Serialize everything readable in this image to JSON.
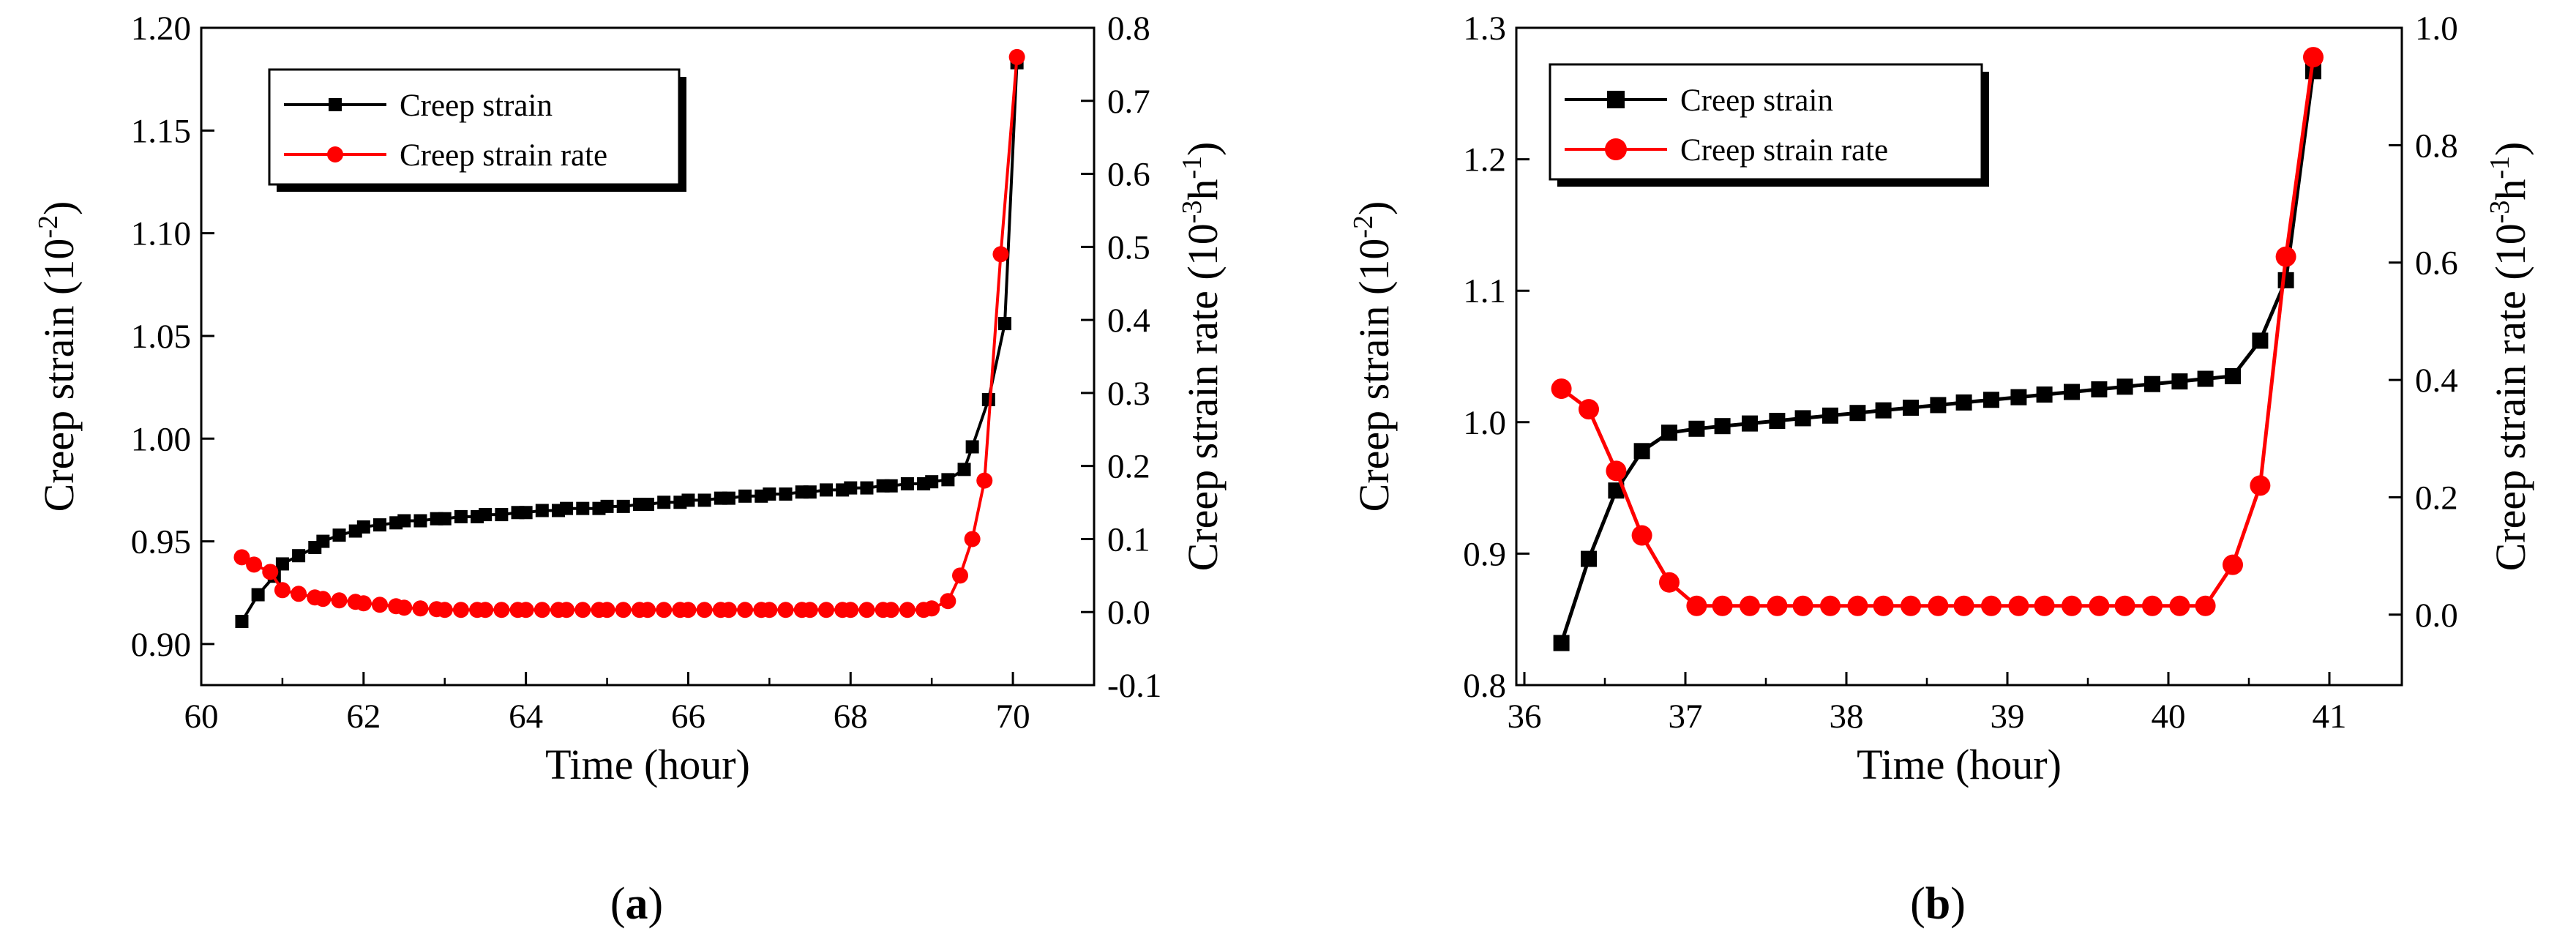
{
  "chart_data": [
    {
      "type": "line",
      "panel_label": "a",
      "xlabel": "Time (hour)",
      "ylabel": "Creep strain",
      "ylabel_unit_base": "10",
      "ylabel_unit_exp": "-2",
      "y2label": "Creep strain rate",
      "y2label_unit_base": "10",
      "y2label_unit_exp": "-3",
      "y2label_unit_tail": "h",
      "y2label_unit_tail_exp": "-1",
      "xlim": [
        60,
        71
      ],
      "ylim": [
        0.88,
        1.2
      ],
      "y2lim": [
        -0.1,
        0.8
      ],
      "xticks": [
        "60",
        "62",
        "64",
        "66",
        "68",
        "70"
      ],
      "xtick_values": [
        60,
        62,
        64,
        66,
        68,
        70
      ],
      "yticks": [
        "0.90",
        "0.95",
        "1.00",
        "1.05",
        "1.10",
        "1.15",
        "1.20"
      ],
      "ytick_values": [
        0.9,
        0.95,
        1.0,
        1.05,
        1.1,
        1.15,
        1.2
      ],
      "y2ticks": [
        "-0.1",
        "0.0",
        "0.1",
        "0.2",
        "0.3",
        "0.4",
        "0.5",
        "0.6",
        "0.7",
        "0.8"
      ],
      "y2tick_values": [
        -0.1,
        0.0,
        0.1,
        0.2,
        0.3,
        0.4,
        0.5,
        0.6,
        0.7,
        0.8
      ],
      "legend_position": "top-left",
      "series": [
        {
          "name": "Creep strain",
          "axis": "left",
          "color": "#000000",
          "marker": "square",
          "x": [
            60.5,
            60.7,
            60.9,
            61.0,
            61.2,
            61.4,
            61.5,
            61.7,
            61.9,
            62.0,
            62.2,
            62.4,
            62.5,
            62.7,
            62.9,
            63.0,
            63.2,
            63.4,
            63.5,
            63.7,
            63.9,
            64.0,
            64.2,
            64.4,
            64.5,
            64.7,
            64.9,
            65.0,
            65.2,
            65.4,
            65.5,
            65.7,
            65.9,
            66.0,
            66.2,
            66.4,
            66.5,
            66.7,
            66.9,
            67.0,
            67.2,
            67.4,
            67.5,
            67.7,
            67.9,
            68.0,
            68.2,
            68.4,
            68.5,
            68.7,
            68.9,
            69.0,
            69.2,
            69.4,
            69.5,
            69.7,
            69.9,
            70.05
          ],
          "y": [
            0.911,
            0.924,
            0.933,
            0.939,
            0.943,
            0.947,
            0.95,
            0.953,
            0.955,
            0.957,
            0.958,
            0.959,
            0.96,
            0.96,
            0.961,
            0.961,
            0.962,
            0.962,
            0.963,
            0.963,
            0.964,
            0.964,
            0.965,
            0.965,
            0.966,
            0.966,
            0.966,
            0.967,
            0.967,
            0.968,
            0.968,
            0.969,
            0.969,
            0.97,
            0.97,
            0.971,
            0.971,
            0.972,
            0.972,
            0.973,
            0.973,
            0.974,
            0.974,
            0.975,
            0.975,
            0.976,
            0.976,
            0.977,
            0.977,
            0.978,
            0.978,
            0.979,
            0.98,
            0.985,
            0.996,
            1.019,
            1.056,
            1.183
          ]
        },
        {
          "name": "Creep strain rate",
          "axis": "right",
          "color": "#ff0000",
          "marker": "circle",
          "x": [
            60.5,
            60.65,
            60.85,
            61.0,
            61.2,
            61.4,
            61.5,
            61.7,
            61.9,
            62.0,
            62.2,
            62.4,
            62.5,
            62.7,
            62.9,
            63.0,
            63.2,
            63.4,
            63.5,
            63.7,
            63.9,
            64.0,
            64.2,
            64.4,
            64.5,
            64.7,
            64.9,
            65.0,
            65.2,
            65.4,
            65.5,
            65.7,
            65.9,
            66.0,
            66.2,
            66.4,
            66.5,
            66.7,
            66.9,
            67.0,
            67.2,
            67.4,
            67.5,
            67.7,
            67.9,
            68.0,
            68.2,
            68.4,
            68.5,
            68.7,
            68.9,
            69.0,
            69.2,
            69.35,
            69.5,
            69.65,
            69.85,
            70.05
          ],
          "y": [
            0.075,
            0.065,
            0.055,
            0.03,
            0.025,
            0.02,
            0.018,
            0.016,
            0.014,
            0.012,
            0.01,
            0.008,
            0.006,
            0.005,
            0.004,
            0.003,
            0.003,
            0.003,
            0.003,
            0.003,
            0.003,
            0.003,
            0.003,
            0.003,
            0.003,
            0.003,
            0.003,
            0.003,
            0.003,
            0.003,
            0.003,
            0.003,
            0.003,
            0.003,
            0.003,
            0.003,
            0.003,
            0.003,
            0.003,
            0.003,
            0.003,
            0.003,
            0.003,
            0.003,
            0.003,
            0.003,
            0.003,
            0.003,
            0.003,
            0.003,
            0.003,
            0.005,
            0.015,
            0.05,
            0.1,
            0.18,
            0.49,
            0.76
          ]
        }
      ]
    },
    {
      "type": "line",
      "panel_label": "b",
      "xlabel": "Time (hour)",
      "ylabel": "Creep strain",
      "ylabel_unit_base": "10",
      "ylabel_unit_exp": "-2",
      "y2label": "Creep strain rate",
      "y2label_unit_base": "10",
      "y2label_unit_exp": "-3",
      "y2label_unit_tail": "h",
      "y2label_unit_tail_exp": "-1",
      "xlim": [
        35.95,
        41.45
      ],
      "ylim": [
        0.8,
        1.3
      ],
      "y2lim": [
        -0.12,
        1.0
      ],
      "xticks": [
        "36",
        "37",
        "38",
        "39",
        "40",
        "41"
      ],
      "xtick_values": [
        36,
        37,
        38,
        39,
        40,
        41
      ],
      "yticks": [
        "0.8",
        "0.9",
        "1.0",
        "1.1",
        "1.2",
        "1.3"
      ],
      "ytick_values": [
        0.8,
        0.9,
        1.0,
        1.1,
        1.2,
        1.3
      ],
      "y2ticks": [
        "0.0",
        "0.2",
        "0.4",
        "0.6",
        "0.8",
        "1.0"
      ],
      "y2tick_values": [
        0.0,
        0.2,
        0.4,
        0.6,
        0.8,
        1.0
      ],
      "legend_position": "top-left",
      "series": [
        {
          "name": "Creep strain",
          "axis": "left",
          "color": "#000000",
          "marker": "square",
          "x": [
            36.23,
            36.4,
            36.57,
            36.73,
            36.9,
            37.07,
            37.23,
            37.4,
            37.57,
            37.73,
            37.9,
            38.07,
            38.23,
            38.4,
            38.57,
            38.73,
            38.9,
            39.07,
            39.23,
            39.4,
            39.57,
            39.73,
            39.9,
            40.07,
            40.23,
            40.4,
            40.57,
            40.73,
            40.9
          ],
          "y": [
            0.832,
            0.896,
            0.948,
            0.978,
            0.992,
            0.995,
            0.997,
            0.999,
            1.001,
            1.003,
            1.005,
            1.007,
            1.009,
            1.011,
            1.013,
            1.015,
            1.017,
            1.019,
            1.021,
            1.023,
            1.025,
            1.027,
            1.029,
            1.031,
            1.033,
            1.035,
            1.062,
            1.108,
            1.267
          ]
        },
        {
          "name": "Creep strain rate",
          "axis": "right",
          "color": "#ff0000",
          "marker": "circle",
          "x": [
            36.23,
            36.4,
            36.57,
            36.73,
            36.9,
            37.07,
            37.23,
            37.4,
            37.57,
            37.73,
            37.9,
            38.07,
            38.23,
            38.4,
            38.57,
            38.73,
            38.9,
            39.07,
            39.23,
            39.4,
            39.57,
            39.73,
            39.9,
            40.07,
            40.23,
            40.4,
            40.57,
            40.73,
            40.9
          ],
          "y": [
            0.385,
            0.35,
            0.245,
            0.135,
            0.055,
            0.015,
            0.015,
            0.015,
            0.015,
            0.015,
            0.015,
            0.015,
            0.015,
            0.015,
            0.015,
            0.015,
            0.015,
            0.015,
            0.015,
            0.015,
            0.015,
            0.015,
            0.015,
            0.015,
            0.015,
            0.085,
            0.22,
            0.61,
            0.95
          ]
        }
      ]
    }
  ]
}
